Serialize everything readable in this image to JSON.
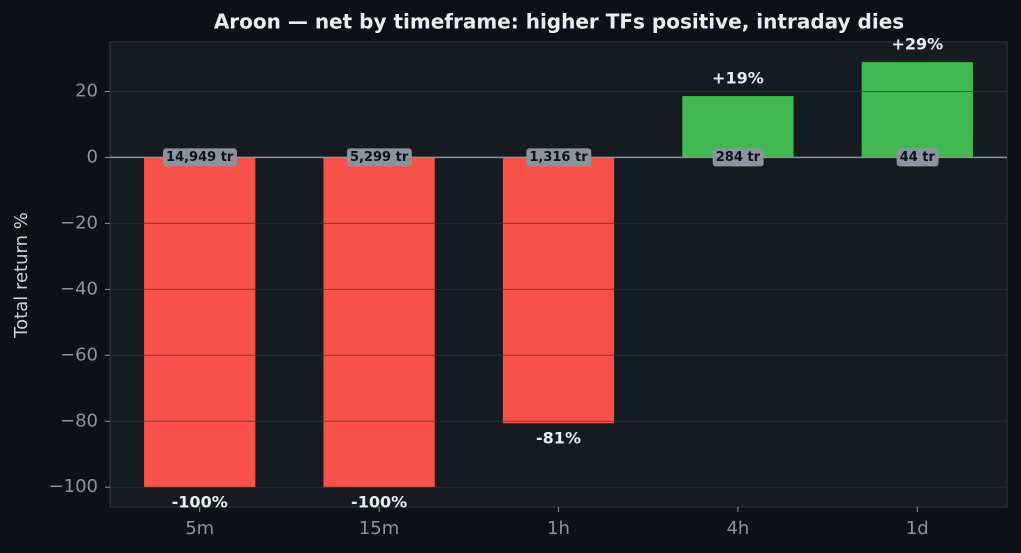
{
  "chart_data": {
    "type": "bar",
    "title": "Aroon — net by timeframe: higher TFs positive, intraday dies",
    "y_label": "Total return %",
    "categories": [
      "5m",
      "15m",
      "1h",
      "4h",
      "1d"
    ],
    "values": [
      -100,
      -100,
      -80.6,
      18.6,
      28.9
    ],
    "value_labels": [
      "-100%",
      "-100%",
      "-81%",
      "+19%",
      "+29%"
    ],
    "annotations": [
      "14,949 tr",
      "5,299 tr",
      "1,316 tr",
      "284 tr",
      "44 tr"
    ],
    "positive_color": "#3fb950",
    "negative_color": "#f85149",
    "ylim": [
      -106,
      35
    ],
    "yticks": [
      {
        "value": -100,
        "label": "−100"
      },
      {
        "value": -80,
        "label": "−80"
      },
      {
        "value": -60,
        "label": "−60"
      },
      {
        "value": -40,
        "label": "−40"
      },
      {
        "value": -20,
        "label": "−20"
      },
      0,
      20
    ],
    "grid": true
  }
}
